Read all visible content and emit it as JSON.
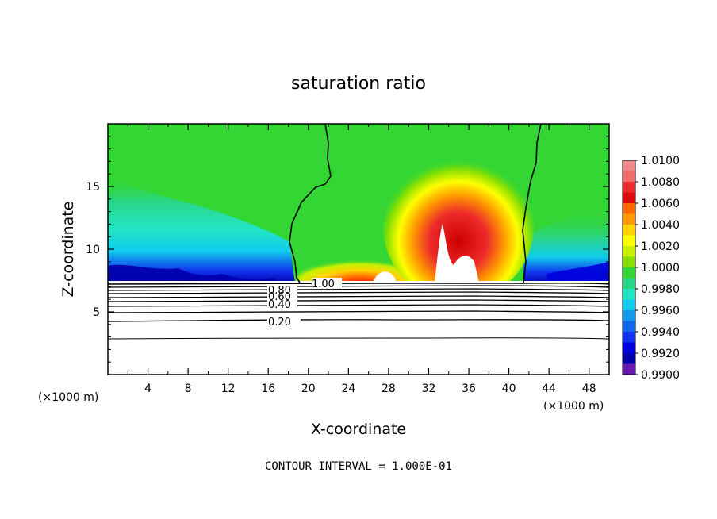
{
  "chart_data": {
    "type": "heatmap",
    "title": "saturation ratio",
    "xlabel": "X-coordinate",
    "ylabel": "Z-coordinate",
    "x_unit": "(×1000 m)",
    "y_unit": "(×1000 m)",
    "xlim": [
      0,
      50
    ],
    "ylim": [
      0,
      20
    ],
    "x_ticks": [
      "4",
      "8",
      "12",
      "16",
      "20",
      "24",
      "28",
      "32",
      "36",
      "40",
      "44",
      "48"
    ],
    "y_ticks": [
      "5",
      "10",
      "15"
    ],
    "colorbar": {
      "range": [
        0.99,
        1.01
      ],
      "labels": [
        "1.0100",
        "1.0080",
        "1.0060",
        "1.0040",
        "1.0020",
        "1.0000",
        "0.9980",
        "0.9960",
        "0.9940",
        "0.9920",
        "0.9900"
      ],
      "colors": [
        "#f08a8a",
        "#f26b6b",
        "#ee2b2b",
        "#dd0b0b",
        "#ff6a00",
        "#ff9900",
        "#ffd200",
        "#ffff00",
        "#c8f000",
        "#88e000",
        "#33d633",
        "#2ad68a",
        "#22e5c4",
        "#11ccee",
        "#1199ee",
        "#1166ee",
        "#1133ee",
        "#0000dd",
        "#0000aa",
        "#6a1ab0"
      ]
    },
    "contour_labels": [
      "1.00",
      "0.80",
      "0.60",
      "0.40",
      "0.20"
    ],
    "contour_interval_text": "CONTOUR INTERVAL = 1.000E-01"
  }
}
